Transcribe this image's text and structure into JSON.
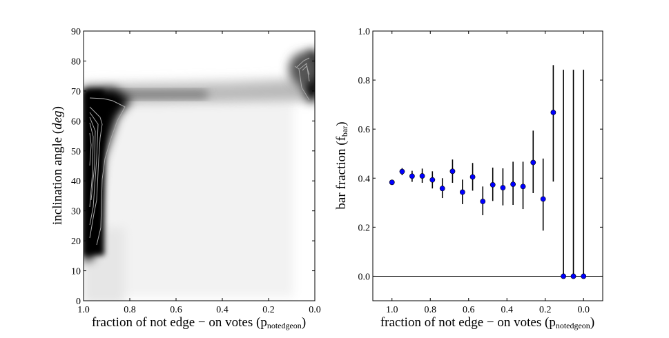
{
  "chart_data": [
    {
      "type": "heatmap",
      "xlabel": "fraction of not edge − on votes (",
      "xlabel_sub": "notedgeon",
      "xlabel_symbol": "p",
      "ylabel": "inclination angle (",
      "ylabel_italic": "deg",
      "xlim": [
        1.0,
        0.0
      ],
      "ylim": [
        0,
        90
      ],
      "xticks": [
        "1.0",
        "0.8",
        "0.6",
        "0.4",
        "0.2",
        "0.0"
      ],
      "yticks": [
        "0",
        "10",
        "20",
        "30",
        "40",
        "50",
        "60",
        "70",
        "80",
        "90"
      ],
      "colormap": "gray_r",
      "contours": true,
      "contour_color": "#aaaaaa"
    },
    {
      "type": "scatter",
      "xlabel": "fraction of not edge − on votes (",
      "xlabel_sub": "notedgeon",
      "xlabel_symbol": "p",
      "ylabel": "bar fraction (",
      "ylabel_symbol": "f",
      "ylabel_sub": "bar",
      "xlim": [
        1.1,
        -0.1
      ],
      "ylim": [
        -0.1,
        1.0
      ],
      "xticks": [
        "1.0",
        "0.8",
        "0.6",
        "0.4",
        "0.2",
        "0.0"
      ],
      "yticks": [
        "0.0",
        "0.2",
        "0.4",
        "0.6",
        "0.8",
        "1.0"
      ],
      "marker_color": "#0000ff",
      "hline": 0.0,
      "x": [
        1.0,
        0.947,
        0.895,
        0.842,
        0.789,
        0.737,
        0.684,
        0.632,
        0.579,
        0.526,
        0.474,
        0.421,
        0.368,
        0.316,
        0.263,
        0.211,
        0.158,
        0.105,
        0.053,
        0.0
      ],
      "y": [
        0.383,
        0.427,
        0.408,
        0.409,
        0.393,
        0.358,
        0.428,
        0.343,
        0.405,
        0.305,
        0.373,
        0.361,
        0.375,
        0.366,
        0.464,
        0.315,
        0.668,
        0.0,
        0.0,
        0.0
      ],
      "err_low": [
        0.383,
        0.412,
        0.385,
        0.381,
        0.358,
        0.319,
        0.381,
        0.294,
        0.349,
        0.249,
        0.307,
        0.289,
        0.291,
        0.274,
        0.339,
        0.186,
        0.386,
        0.0,
        0.0,
        0.0
      ],
      "err_high": [
        0.383,
        0.441,
        0.43,
        0.439,
        0.428,
        0.4,
        0.476,
        0.394,
        0.462,
        0.366,
        0.443,
        0.44,
        0.467,
        0.467,
        0.594,
        0.48,
        0.861,
        0.842,
        0.842,
        0.842
      ]
    }
  ]
}
